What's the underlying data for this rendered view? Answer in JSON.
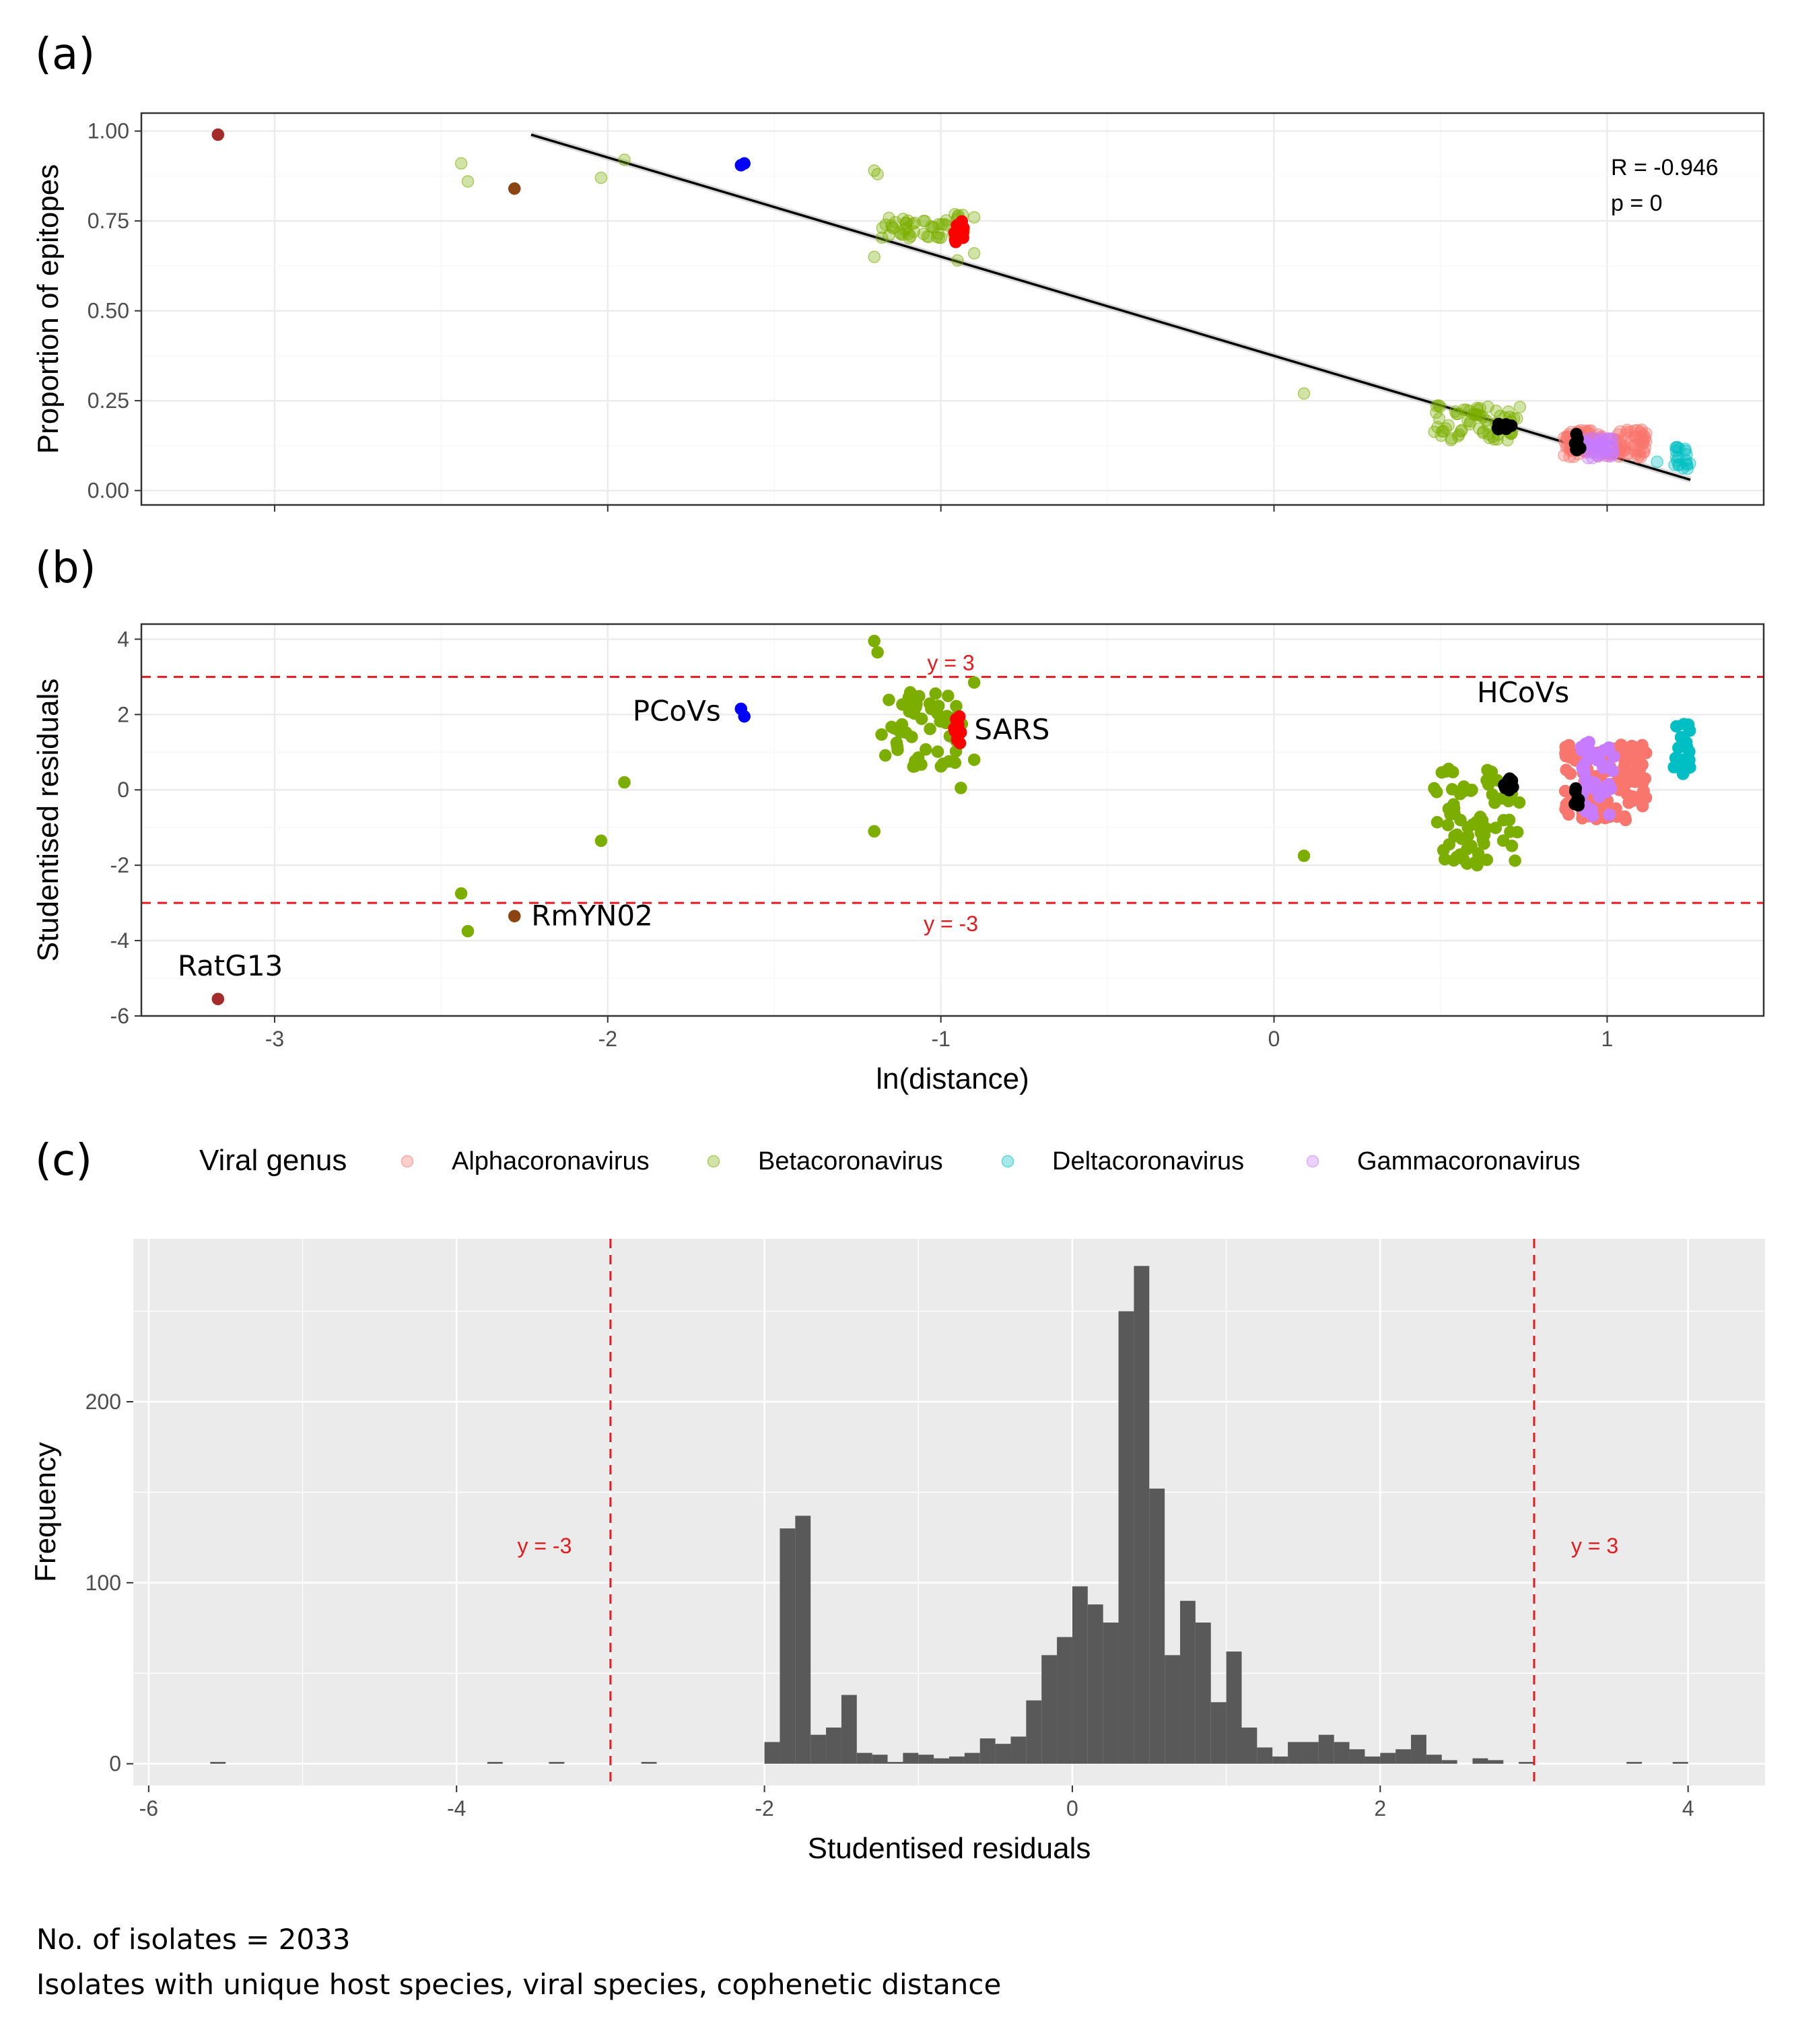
{
  "panels": {
    "a_label": "(a)",
    "b_label": "(b)",
    "c_label": "(c)"
  },
  "colors": {
    "Alphacoronavirus": "#F8766D",
    "Betacoronavirus": "#7CAE00",
    "Deltacoronavirus": "#00BFC4",
    "Gammacoronavirus": "#C77CFF",
    "PCoVs": "#0000FF",
    "SARS": "#FF0000",
    "HCoVs": "#000000",
    "RatG13": "#A52A2A",
    "RmYN02": "#8B4513",
    "threshold": "#E41A1C",
    "hist_bar": "#595959",
    "hist_bg": "#EBEBEB"
  },
  "legend": {
    "title": "Viral genus",
    "items": [
      "Alphacoronavirus",
      "Betacoronavirus",
      "Deltacoronavirus",
      "Gammacoronavirus"
    ]
  },
  "footnotes": {
    "line1": "No. of isolates = 2033",
    "line2": "Isolates with unique host species, viral species, cophenetic distance"
  },
  "chart_data": [
    {
      "panel": "(a)",
      "type": "scatter",
      "ylabel": "Proportion of epitopes",
      "xlim": [
        -3.4,
        1.47
      ],
      "ylim": [
        -0.04,
        1.05
      ],
      "x_ticks": [
        -3,
        -2,
        -1,
        0,
        1
      ],
      "y_ticks": [
        "0.00",
        "0.25",
        "0.50",
        "0.75",
        "1.00"
      ],
      "grid": true,
      "annotation": {
        "line1": "R = -0.946",
        "line2": "p = 0"
      },
      "regression_line": {
        "x": [
          -2.23,
          1.25
        ],
        "y": [
          0.99,
          0.03
        ]
      },
      "points": [
        {
          "x": -3.17,
          "y": 0.99,
          "group": "RatG13"
        },
        {
          "x": -2.28,
          "y": 0.84,
          "group": "RmYN02"
        },
        {
          "x": -2.44,
          "y": 0.91,
          "group": "Betacoronavirus"
        },
        {
          "x": -2.42,
          "y": 0.86,
          "group": "Betacoronavirus"
        },
        {
          "x": -2.02,
          "y": 0.87,
          "group": "Betacoronavirus"
        },
        {
          "x": -1.95,
          "y": 0.92,
          "group": "Betacoronavirus"
        },
        {
          "x": -1.59,
          "y": 0.91,
          "group": "PCoVs"
        },
        {
          "x": -1.6,
          "y": 0.905,
          "group": "PCoVs"
        },
        {
          "x": -1.2,
          "y": 0.89,
          "group": "Betacoronavirus"
        },
        {
          "x": -1.19,
          "y": 0.88,
          "group": "Betacoronavirus"
        },
        {
          "x": -1.2,
          "y": 0.65,
          "group": "Betacoronavirus"
        },
        {
          "x": -0.95,
          "y": 0.64,
          "group": "Betacoronavirus"
        },
        {
          "x": -0.9,
          "y": 0.66,
          "group": "Betacoronavirus"
        },
        {
          "x": -0.9,
          "y": 0.76,
          "group": "Betacoronavirus"
        },
        {
          "x": 0.09,
          "y": 0.27,
          "group": "Betacoronavirus"
        },
        {
          "x": 1.15,
          "y": 0.08,
          "group": "Deltacoronavirus"
        }
      ],
      "clusters": [
        {
          "group": "Betacoronavirus",
          "x_range": [
            -1.18,
            -0.93
          ],
          "y_range": [
            0.7,
            0.77
          ],
          "n": 55
        },
        {
          "group": "SARS",
          "x_range": [
            -0.96,
            -0.93
          ],
          "y_range": [
            0.69,
            0.75
          ],
          "n": 14
        },
        {
          "group": "Betacoronavirus",
          "x_range": [
            0.48,
            0.74
          ],
          "y_range": [
            0.14,
            0.24
          ],
          "n": 70
        },
        {
          "group": "HCoVs",
          "x_range": [
            0.67,
            0.72
          ],
          "y_range": [
            0.17,
            0.19
          ],
          "n": 8
        },
        {
          "group": "Alphacoronavirus",
          "x_range": [
            0.87,
            1.12
          ],
          "y_range": [
            0.09,
            0.17
          ],
          "n": 140
        },
        {
          "group": "Gammacoronavirus",
          "x_range": [
            0.92,
            1.02
          ],
          "y_range": [
            0.09,
            0.15
          ],
          "n": 45
        },
        {
          "group": "HCoVs",
          "x_range": [
            0.9,
            0.92
          ],
          "y_range": [
            0.11,
            0.17
          ],
          "n": 8
        },
        {
          "group": "Deltacoronavirus",
          "x_range": [
            1.2,
            1.25
          ],
          "y_range": [
            0.06,
            0.13
          ],
          "n": 20
        }
      ]
    },
    {
      "panel": "(b)",
      "type": "scatter",
      "xlabel": "ln(distance)",
      "ylabel": "Studentised residuals",
      "xlim": [
        -3.4,
        1.47
      ],
      "ylim": [
        -6.0,
        4.4
      ],
      "x_ticks": [
        -3,
        -2,
        -1,
        0,
        1
      ],
      "y_ticks": [
        -6,
        -4,
        -2,
        0,
        2,
        4
      ],
      "grid": true,
      "thresholds": [
        {
          "y": 3,
          "label": "y = 3"
        },
        {
          "y": -3,
          "label": "y = -3"
        }
      ],
      "labels": [
        {
          "text": "PCoVs",
          "x": -1.6,
          "y": 2.05
        },
        {
          "text": "SARS",
          "x": -0.95,
          "y": 1.7
        },
        {
          "text": "HCoVs",
          "x": 0.69,
          "y": 1.7
        },
        {
          "text": "RmYN02",
          "x": -2.28,
          "y": -3.35
        },
        {
          "text": "RatG13",
          "x": -3.17,
          "y": -5.5
        }
      ],
      "points": [
        {
          "x": -3.17,
          "y": -5.55,
          "group": "RatG13"
        },
        {
          "x": -2.28,
          "y": -3.35,
          "group": "RmYN02"
        },
        {
          "x": -2.44,
          "y": -2.75,
          "group": "Betacoronavirus"
        },
        {
          "x": -2.42,
          "y": -3.75,
          "group": "Betacoronavirus"
        },
        {
          "x": -2.02,
          "y": -1.35,
          "group": "Betacoronavirus"
        },
        {
          "x": -1.95,
          "y": 0.2,
          "group": "Betacoronavirus"
        },
        {
          "x": -1.6,
          "y": 2.15,
          "group": "PCoVs"
        },
        {
          "x": -1.59,
          "y": 1.95,
          "group": "PCoVs"
        },
        {
          "x": -1.2,
          "y": 3.95,
          "group": "Betacoronavirus"
        },
        {
          "x": -1.19,
          "y": 3.65,
          "group": "Betacoronavirus"
        },
        {
          "x": -1.2,
          "y": -1.1,
          "group": "Betacoronavirus"
        },
        {
          "x": -0.94,
          "y": 0.05,
          "group": "Betacoronavirus"
        },
        {
          "x": -0.9,
          "y": 0.8,
          "group": "Betacoronavirus"
        },
        {
          "x": -0.9,
          "y": 2.85,
          "group": "Betacoronavirus"
        },
        {
          "x": 0.09,
          "y": -1.75,
          "group": "Betacoronavirus"
        }
      ],
      "clusters": [
        {
          "group": "Betacoronavirus",
          "x_range": [
            -1.18,
            -0.93
          ],
          "y_range": [
            0.6,
            2.6
          ],
          "n": 55
        },
        {
          "group": "SARS",
          "x_range": [
            -0.96,
            -0.94
          ],
          "y_range": [
            1.2,
            2.1
          ],
          "n": 14
        },
        {
          "group": "Betacoronavirus",
          "x_range": [
            0.48,
            0.74
          ],
          "y_range": [
            -2.0,
            0.6
          ],
          "n": 70
        },
        {
          "group": "HCoVs",
          "x_range": [
            0.67,
            0.72
          ],
          "y_range": [
            -0.2,
            0.3
          ],
          "n": 8
        },
        {
          "group": "Alphacoronavirus",
          "x_range": [
            0.87,
            1.12
          ],
          "y_range": [
            -0.8,
            1.2
          ],
          "n": 140
        },
        {
          "group": "Gammacoronavirus",
          "x_range": [
            0.92,
            1.02
          ],
          "y_range": [
            -0.7,
            1.3
          ],
          "n": 45
        },
        {
          "group": "HCoVs",
          "x_range": [
            0.9,
            0.92
          ],
          "y_range": [
            -0.45,
            0.1
          ],
          "n": 8
        },
        {
          "group": "Deltacoronavirus",
          "x_range": [
            1.2,
            1.25
          ],
          "y_range": [
            0.4,
            1.8
          ],
          "n": 20
        }
      ]
    },
    {
      "panel": "(c)",
      "type": "bar",
      "xlabel": "Studentised residuals",
      "ylabel": "Frequency",
      "xlim": [
        -6.1,
        4.5
      ],
      "ylim": [
        -12,
        290
      ],
      "x_ticks": [
        -6,
        -4,
        -2,
        0,
        2,
        4
      ],
      "y_ticks": [
        0,
        100,
        200
      ],
      "grid": true,
      "thresholds": [
        {
          "x": -3,
          "label": "y = -3"
        },
        {
          "x": 3,
          "label": "y = 3"
        }
      ],
      "bin_width": 0.1,
      "bins": [
        {
          "x0": -5.6,
          "count": 1
        },
        {
          "x0": -3.8,
          "count": 1
        },
        {
          "x0": -3.4,
          "count": 1
        },
        {
          "x0": -2.8,
          "count": 1
        },
        {
          "x0": -2.0,
          "count": 12
        },
        {
          "x0": -1.9,
          "count": 130
        },
        {
          "x0": -1.8,
          "count": 137
        },
        {
          "x0": -1.7,
          "count": 16
        },
        {
          "x0": -1.6,
          "count": 20
        },
        {
          "x0": -1.5,
          "count": 38
        },
        {
          "x0": -1.4,
          "count": 6
        },
        {
          "x0": -1.3,
          "count": 5
        },
        {
          "x0": -1.2,
          "count": 1
        },
        {
          "x0": -1.1,
          "count": 6
        },
        {
          "x0": -1.0,
          "count": 5
        },
        {
          "x0": -0.9,
          "count": 3
        },
        {
          "x0": -0.8,
          "count": 4
        },
        {
          "x0": -0.7,
          "count": 6
        },
        {
          "x0": -0.6,
          "count": 14
        },
        {
          "x0": -0.5,
          "count": 11
        },
        {
          "x0": -0.4,
          "count": 15
        },
        {
          "x0": -0.3,
          "count": 35
        },
        {
          "x0": -0.2,
          "count": 60
        },
        {
          "x0": -0.1,
          "count": 70
        },
        {
          "x0": 0.0,
          "count": 98
        },
        {
          "x0": 0.1,
          "count": 88
        },
        {
          "x0": 0.2,
          "count": 78
        },
        {
          "x0": 0.3,
          "count": 250
        },
        {
          "x0": 0.4,
          "count": 275
        },
        {
          "x0": 0.5,
          "count": 152
        },
        {
          "x0": 0.6,
          "count": 60
        },
        {
          "x0": 0.7,
          "count": 90
        },
        {
          "x0": 0.8,
          "count": 78
        },
        {
          "x0": 0.9,
          "count": 34
        },
        {
          "x0": 1.0,
          "count": 62
        },
        {
          "x0": 1.1,
          "count": 20
        },
        {
          "x0": 1.2,
          "count": 9
        },
        {
          "x0": 1.3,
          "count": 4
        },
        {
          "x0": 1.4,
          "count": 12
        },
        {
          "x0": 1.5,
          "count": 12
        },
        {
          "x0": 1.6,
          "count": 16
        },
        {
          "x0": 1.7,
          "count": 12
        },
        {
          "x0": 1.8,
          "count": 8
        },
        {
          "x0": 1.9,
          "count": 4
        },
        {
          "x0": 2.0,
          "count": 6
        },
        {
          "x0": 2.1,
          "count": 8
        },
        {
          "x0": 2.2,
          "count": 16
        },
        {
          "x0": 2.3,
          "count": 5
        },
        {
          "x0": 2.4,
          "count": 2
        },
        {
          "x0": 2.6,
          "count": 3
        },
        {
          "x0": 2.7,
          "count": 2
        },
        {
          "x0": 2.9,
          "count": 1
        },
        {
          "x0": 3.6,
          "count": 1
        },
        {
          "x0": 3.9,
          "count": 1
        }
      ]
    }
  ]
}
